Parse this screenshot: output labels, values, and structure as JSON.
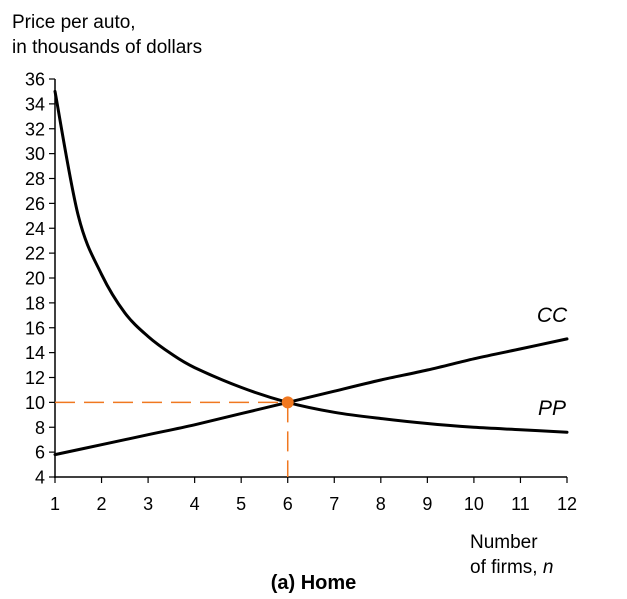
{
  "chart_data": {
    "type": "line",
    "title": "",
    "ylabel_lines": [
      "Price per auto,",
      "in thousands of dollars"
    ],
    "xlabel_lines": [
      "Number",
      "of firms, n"
    ],
    "caption": "(a) Home",
    "xlim": [
      1,
      12
    ],
    "ylim": [
      4,
      36
    ],
    "x_ticks": [
      1,
      2,
      3,
      4,
      5,
      6,
      7,
      8,
      9,
      10,
      11,
      12
    ],
    "y_ticks": [
      4,
      6,
      8,
      10,
      12,
      14,
      16,
      18,
      20,
      22,
      24,
      26,
      28,
      30,
      32,
      34,
      36
    ],
    "grid": false,
    "series": [
      {
        "name": "CC",
        "color": "#000000",
        "x": [
          1,
          2,
          3,
          4,
          5,
          6,
          7,
          8,
          9,
          10,
          11,
          12
        ],
        "y": [
          5.8,
          6.6,
          7.4,
          8.2,
          9.1,
          10.0,
          10.9,
          11.8,
          12.6,
          13.5,
          14.3,
          15.1
        ]
      },
      {
        "name": "PP",
        "color": "#000000",
        "x": [
          1,
          1.5,
          2,
          2.5,
          3,
          3.5,
          4,
          5,
          6,
          7,
          8,
          9,
          10,
          11,
          12
        ],
        "y": [
          35.0,
          25.0,
          20.3,
          17.2,
          15.3,
          13.9,
          12.8,
          11.2,
          10.0,
          9.2,
          8.7,
          8.3,
          8.0,
          7.8,
          7.6
        ]
      }
    ],
    "equilibrium": {
      "x": 6,
      "y": 10,
      "color": "#f07820"
    }
  }
}
